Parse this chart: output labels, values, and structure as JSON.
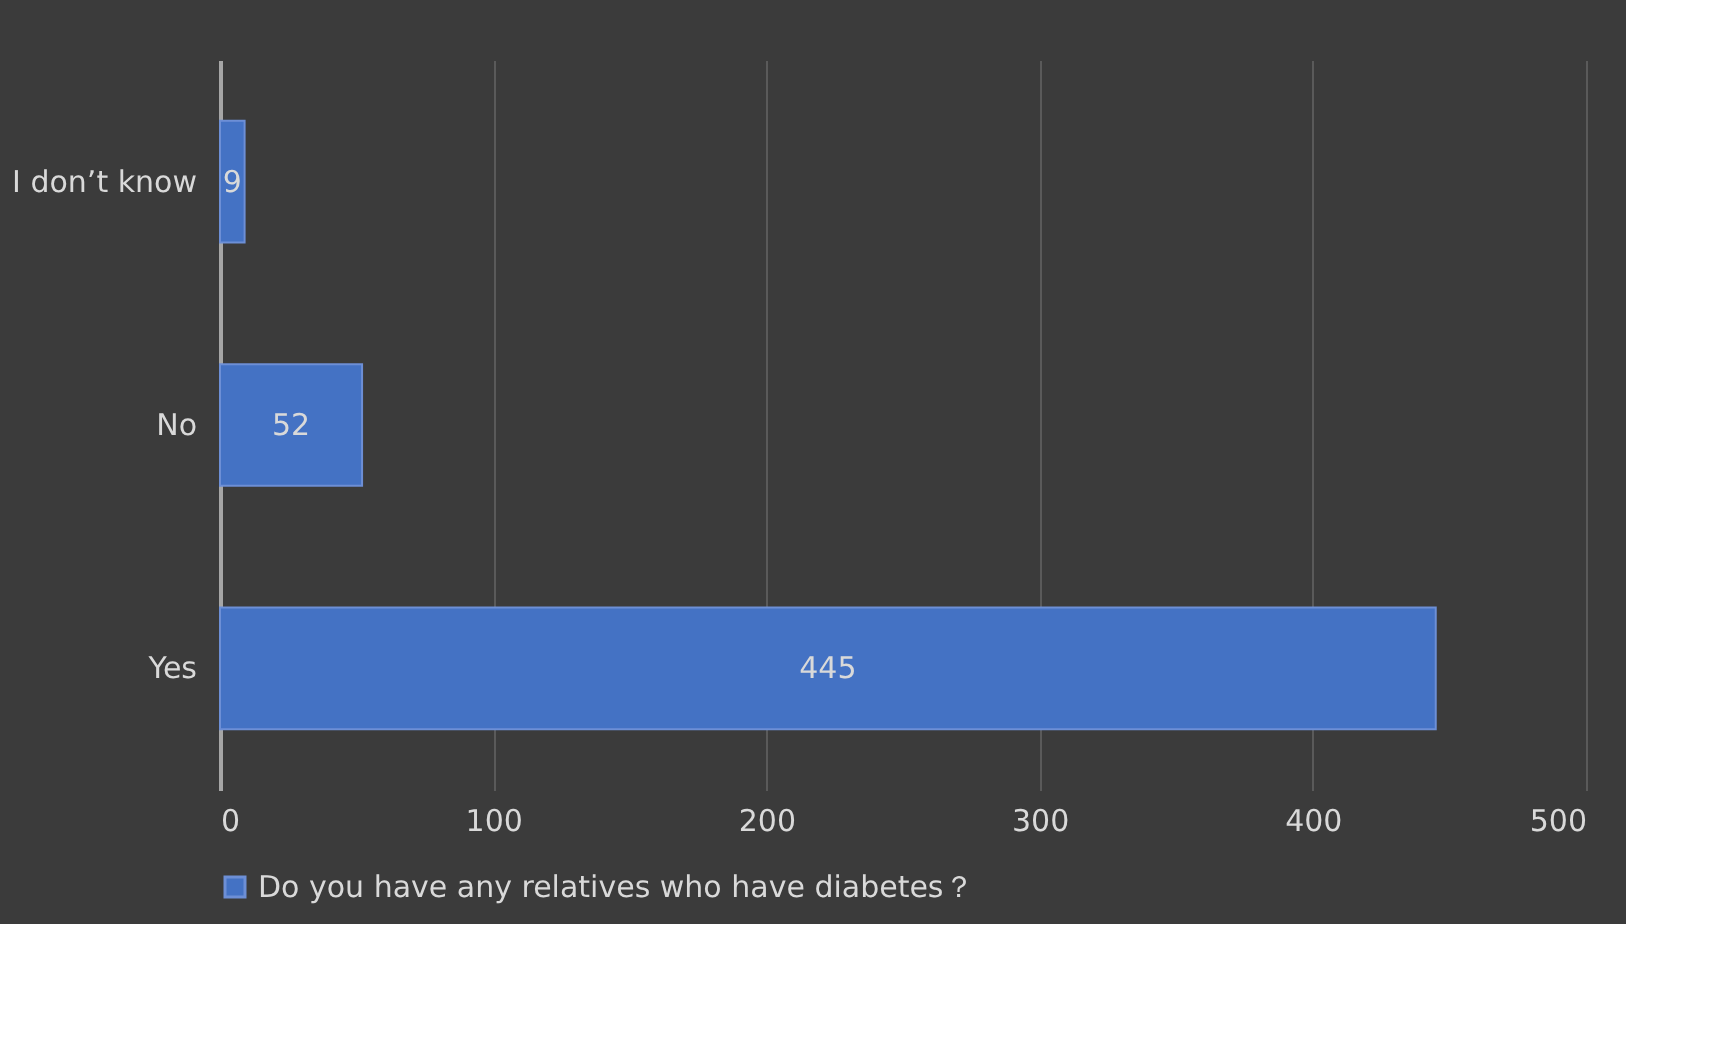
{
  "chart_data": {
    "type": "bar",
    "orientation": "horizontal",
    "categories": [
      "I don’t know",
      "No",
      "Yes"
    ],
    "series": [
      {
        "name": "Do you have any relatives who have diabetes？",
        "color": "#4472c4",
        "values": [
          9,
          52,
          445
        ]
      }
    ],
    "xlim": [
      0,
      500
    ],
    "xticks": [
      0,
      100,
      200,
      300,
      400,
      500
    ],
    "grid": "x",
    "legend": "bottom",
    "data_labels": true
  }
}
